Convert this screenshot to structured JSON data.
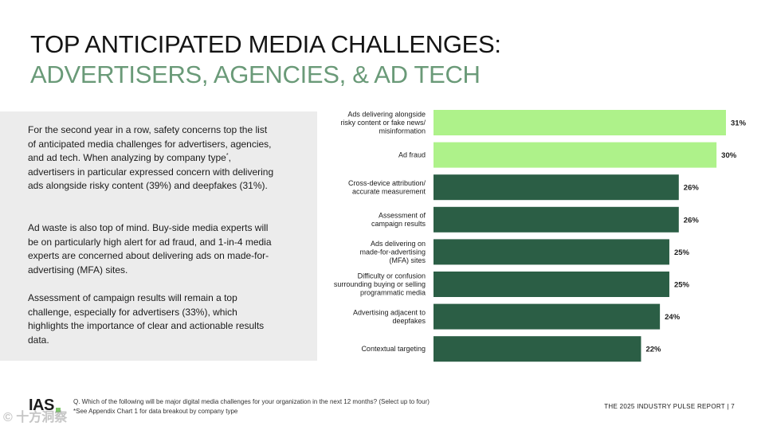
{
  "title_line1": "TOP ANTICIPATED MEDIA CHALLENGES:",
  "title_line2": "ADVERTISERS, AGENCIES, & AD TECH",
  "body": {
    "para1_a": "For the second year in a row, safety concerns top the list of anticipated media challenges for advertisers, agencies, and ad tech. When analyzing by company type",
    "para1_sup": "*",
    "para1_b": ", advertisers in particular expressed concern with delivering ads alongside risky content (39%) and deepfakes (31%).",
    "para2": "Ad waste is also top of mind. Buy-side media experts will be on particularly high alert for ad fraud, and 1-in-4 media experts are concerned about delivering ads on made-for-advertising (MFA) sites.",
    "para3": "Assessment of campaign results will remain a top challenge, especially for advertisers (33%), which highlights the importance of clear and actionable results data."
  },
  "colors": {
    "highlight": "#aef28a",
    "dark": "#2b5e45",
    "title_green": "#6a9a78"
  },
  "chart_data": {
    "type": "bar",
    "orientation": "horizontal",
    "categories": [
      [
        "Ads delivering alongside",
        "risky content or fake news/",
        "misinformation"
      ],
      [
        "Ad fraud"
      ],
      [
        "Cross-device attribution/",
        "accurate measurement"
      ],
      [
        "Assessment of",
        "campaign results"
      ],
      [
        "Ads delivering on",
        "made-for-advertising",
        "(MFA) sites"
      ],
      [
        "Difficulty or confusion",
        "surrounding buying or selling",
        "programmatic media"
      ],
      [
        "Advertising adjacent to",
        "deepfakes"
      ],
      [
        "Contextual targeting"
      ]
    ],
    "values": [
      31,
      30,
      26,
      26,
      25,
      25,
      24,
      22
    ],
    "value_labels": [
      "31%",
      "30%",
      "26%",
      "26%",
      "25%",
      "25%",
      "24%",
      "22%"
    ],
    "highlighted": [
      true,
      true,
      false,
      false,
      false,
      false,
      false,
      false
    ],
    "xlim": [
      0,
      31
    ]
  },
  "footer": {
    "logo": "IAS",
    "note1": "Q. Which of the following will be major digital media challenges for your organization in the next 12 months? (Select up to four)",
    "note2": "*See Appendix Chart 1 for data breakout by company type",
    "report": "THE 2025 INDUSTRY PULSE REPORT  |  7",
    "watermark": "© 十方洞察"
  }
}
